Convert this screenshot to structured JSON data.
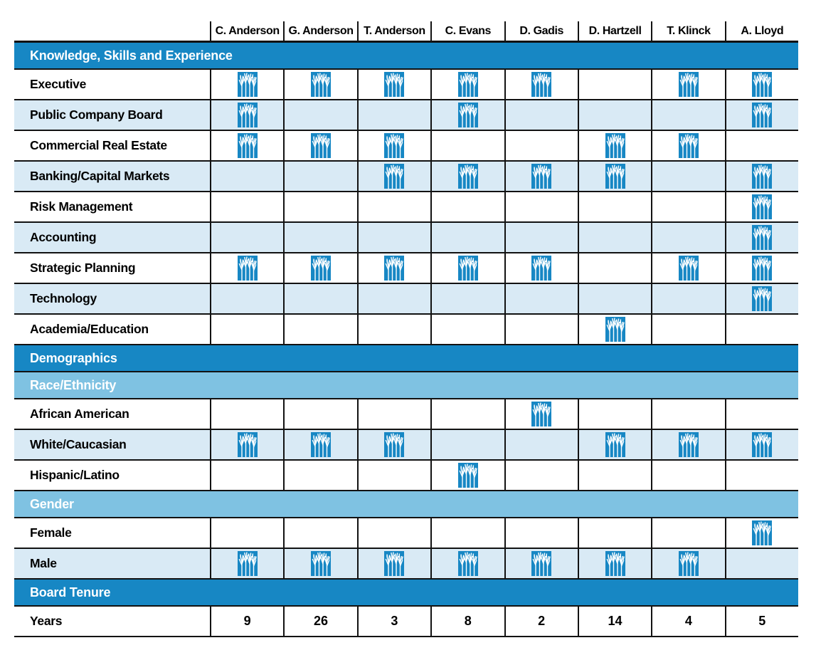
{
  "colors": {
    "dark_blue": "#1787c4",
    "medium_blue": "#7fc2e2",
    "light_blue": "#d9eaf5",
    "border_black": "#121212",
    "text_black": "#000000",
    "icon_blue": "#1787c4",
    "icon_glyph_white": "#ffffff"
  },
  "icons": {
    "mark": "tree-logo-icon"
  },
  "chart_data": {
    "type": "table",
    "title": "Board skills, demographics and tenure matrix",
    "columns": [
      "C. Anderson",
      "G. Anderson",
      "T. Anderson",
      "C. Evans",
      "D. Gadis",
      "D. Hartzell",
      "T. Klinck",
      "A. Lloyd"
    ],
    "sections": [
      {
        "header": "Knowledge, Skills and Experience",
        "header_style": "dark",
        "rows": [
          {
            "label": "Executive",
            "marks": [
              1,
              1,
              1,
              1,
              1,
              0,
              1,
              1
            ]
          },
          {
            "label": "Public Company Board",
            "marks": [
              1,
              0,
              0,
              1,
              0,
              0,
              0,
              1
            ]
          },
          {
            "label": "Commercial Real Estate",
            "marks": [
              1,
              1,
              1,
              0,
              0,
              1,
              1,
              0
            ]
          },
          {
            "label": "Banking/Capital Markets",
            "marks": [
              0,
              0,
              1,
              1,
              1,
              1,
              0,
              1
            ]
          },
          {
            "label": "Risk Management",
            "marks": [
              0,
              0,
              0,
              0,
              0,
              0,
              0,
              1
            ]
          },
          {
            "label": "Accounting",
            "marks": [
              0,
              0,
              0,
              0,
              0,
              0,
              0,
              1
            ]
          },
          {
            "label": "Strategic Planning",
            "marks": [
              1,
              1,
              1,
              1,
              1,
              0,
              1,
              1
            ]
          },
          {
            "label": "Technology",
            "marks": [
              0,
              0,
              0,
              0,
              0,
              0,
              0,
              1
            ]
          },
          {
            "label": "Academia/Education",
            "marks": [
              0,
              0,
              0,
              0,
              0,
              1,
              0,
              0
            ]
          }
        ]
      },
      {
        "header": "Demographics",
        "header_style": "dark",
        "rows": []
      },
      {
        "header": "Race/Ethnicity",
        "header_style": "medium",
        "rows": [
          {
            "label": "African American",
            "marks": [
              0,
              0,
              0,
              0,
              1,
              0,
              0,
              0
            ]
          },
          {
            "label": "White/Caucasian",
            "marks": [
              1,
              1,
              1,
              0,
              0,
              1,
              1,
              1
            ]
          },
          {
            "label": "Hispanic/Latino",
            "marks": [
              0,
              0,
              0,
              1,
              0,
              0,
              0,
              0
            ]
          }
        ]
      },
      {
        "header": "Gender",
        "header_style": "medium",
        "rows": [
          {
            "label": "Female",
            "marks": [
              0,
              0,
              0,
              0,
              0,
              0,
              0,
              1
            ]
          },
          {
            "label": "Male",
            "marks": [
              1,
              1,
              1,
              1,
              1,
              1,
              1,
              0
            ]
          }
        ]
      },
      {
        "header": "Board Tenure",
        "header_style": "dark",
        "rows": [
          {
            "label": "Years",
            "values": [
              9,
              26,
              3,
              8,
              2,
              14,
              4,
              5
            ]
          }
        ]
      }
    ]
  }
}
